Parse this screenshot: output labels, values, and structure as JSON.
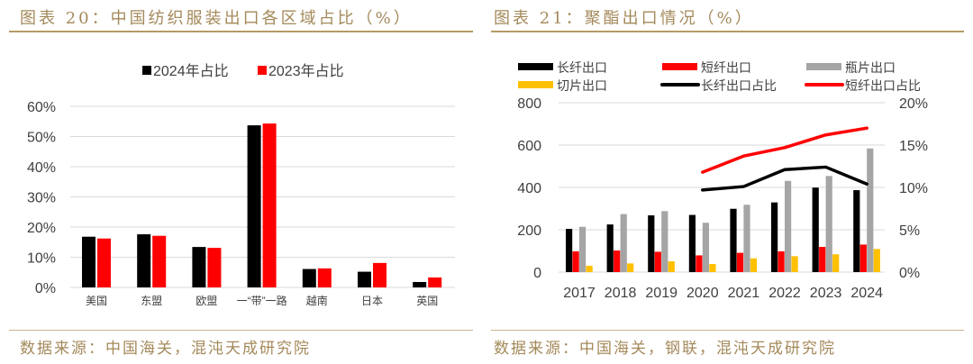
{
  "left": {
    "title": "图表 20：中国纺织服装出口各区域占比（%）",
    "source": "数据来源：中国海关，混沌天成研究院"
  },
  "right": {
    "title": "图表 21：聚酯出口情况（%）",
    "source": "数据来源：中国海关，钢联，混沌天成研究院"
  },
  "chart_data": [
    {
      "type": "bar",
      "categories": [
        "美国",
        "东盟",
        "欧盟",
        "一“带”一路",
        "越南",
        "日本",
        "英国"
      ],
      "series": [
        {
          "name": "2024年占比",
          "color": "#000000",
          "values": [
            16.8,
            17.6,
            13.4,
            53.7,
            6.1,
            5.2,
            1.8
          ]
        },
        {
          "name": "2023年占比",
          "color": "#ff0000",
          "values": [
            16.2,
            17.1,
            13.1,
            54.3,
            6.3,
            8.1,
            3.3
          ]
        }
      ],
      "ylim": [
        0,
        60
      ],
      "yticks": [
        "0%",
        "10%",
        "20%",
        "30%",
        "40%",
        "50%",
        "60%"
      ],
      "grid": true,
      "legend": "top"
    },
    {
      "type": "bar+line",
      "categories": [
        "2017",
        "2018",
        "2019",
        "2020",
        "2021",
        "2022",
        "2023",
        "2024"
      ],
      "bar_series": [
        {
          "name": "长纤出口",
          "color": "#000000",
          "values": [
            204,
            225,
            268,
            270,
            299,
            329,
            399,
            387
          ]
        },
        {
          "name": "短纤出口",
          "color": "#ff0000",
          "values": [
            98,
            102,
            96,
            79,
            91,
            98,
            119,
            130
          ]
        },
        {
          "name": "瓶片出口",
          "color": "#a5a5a5",
          "values": [
            214,
            274,
            288,
            233,
            318,
            431,
            454,
            584
          ]
        },
        {
          "name": "切片出口",
          "color": "#ffc000",
          "values": [
            30,
            41,
            51,
            38,
            65,
            75,
            84,
            109
          ]
        }
      ],
      "line_series": [
        {
          "name": "长纤出口占比",
          "color": "#000000",
          "values": [
            null,
            null,
            null,
            9.7,
            10.1,
            12.1,
            12.4,
            10.4
          ]
        },
        {
          "name": "短纤出口占比",
          "color": "#ff0000",
          "values": [
            null,
            null,
            null,
            11.8,
            13.7,
            14.7,
            16.2,
            17.0
          ]
        }
      ],
      "ylim": [
        0,
        800
      ],
      "yticks": [
        "0",
        "200",
        "400",
        "600",
        "800"
      ],
      "y2lim": [
        0,
        20
      ],
      "y2ticks": [
        "0%",
        "5%",
        "10%",
        "15%",
        "20%"
      ],
      "grid": true,
      "legend": "top"
    }
  ]
}
